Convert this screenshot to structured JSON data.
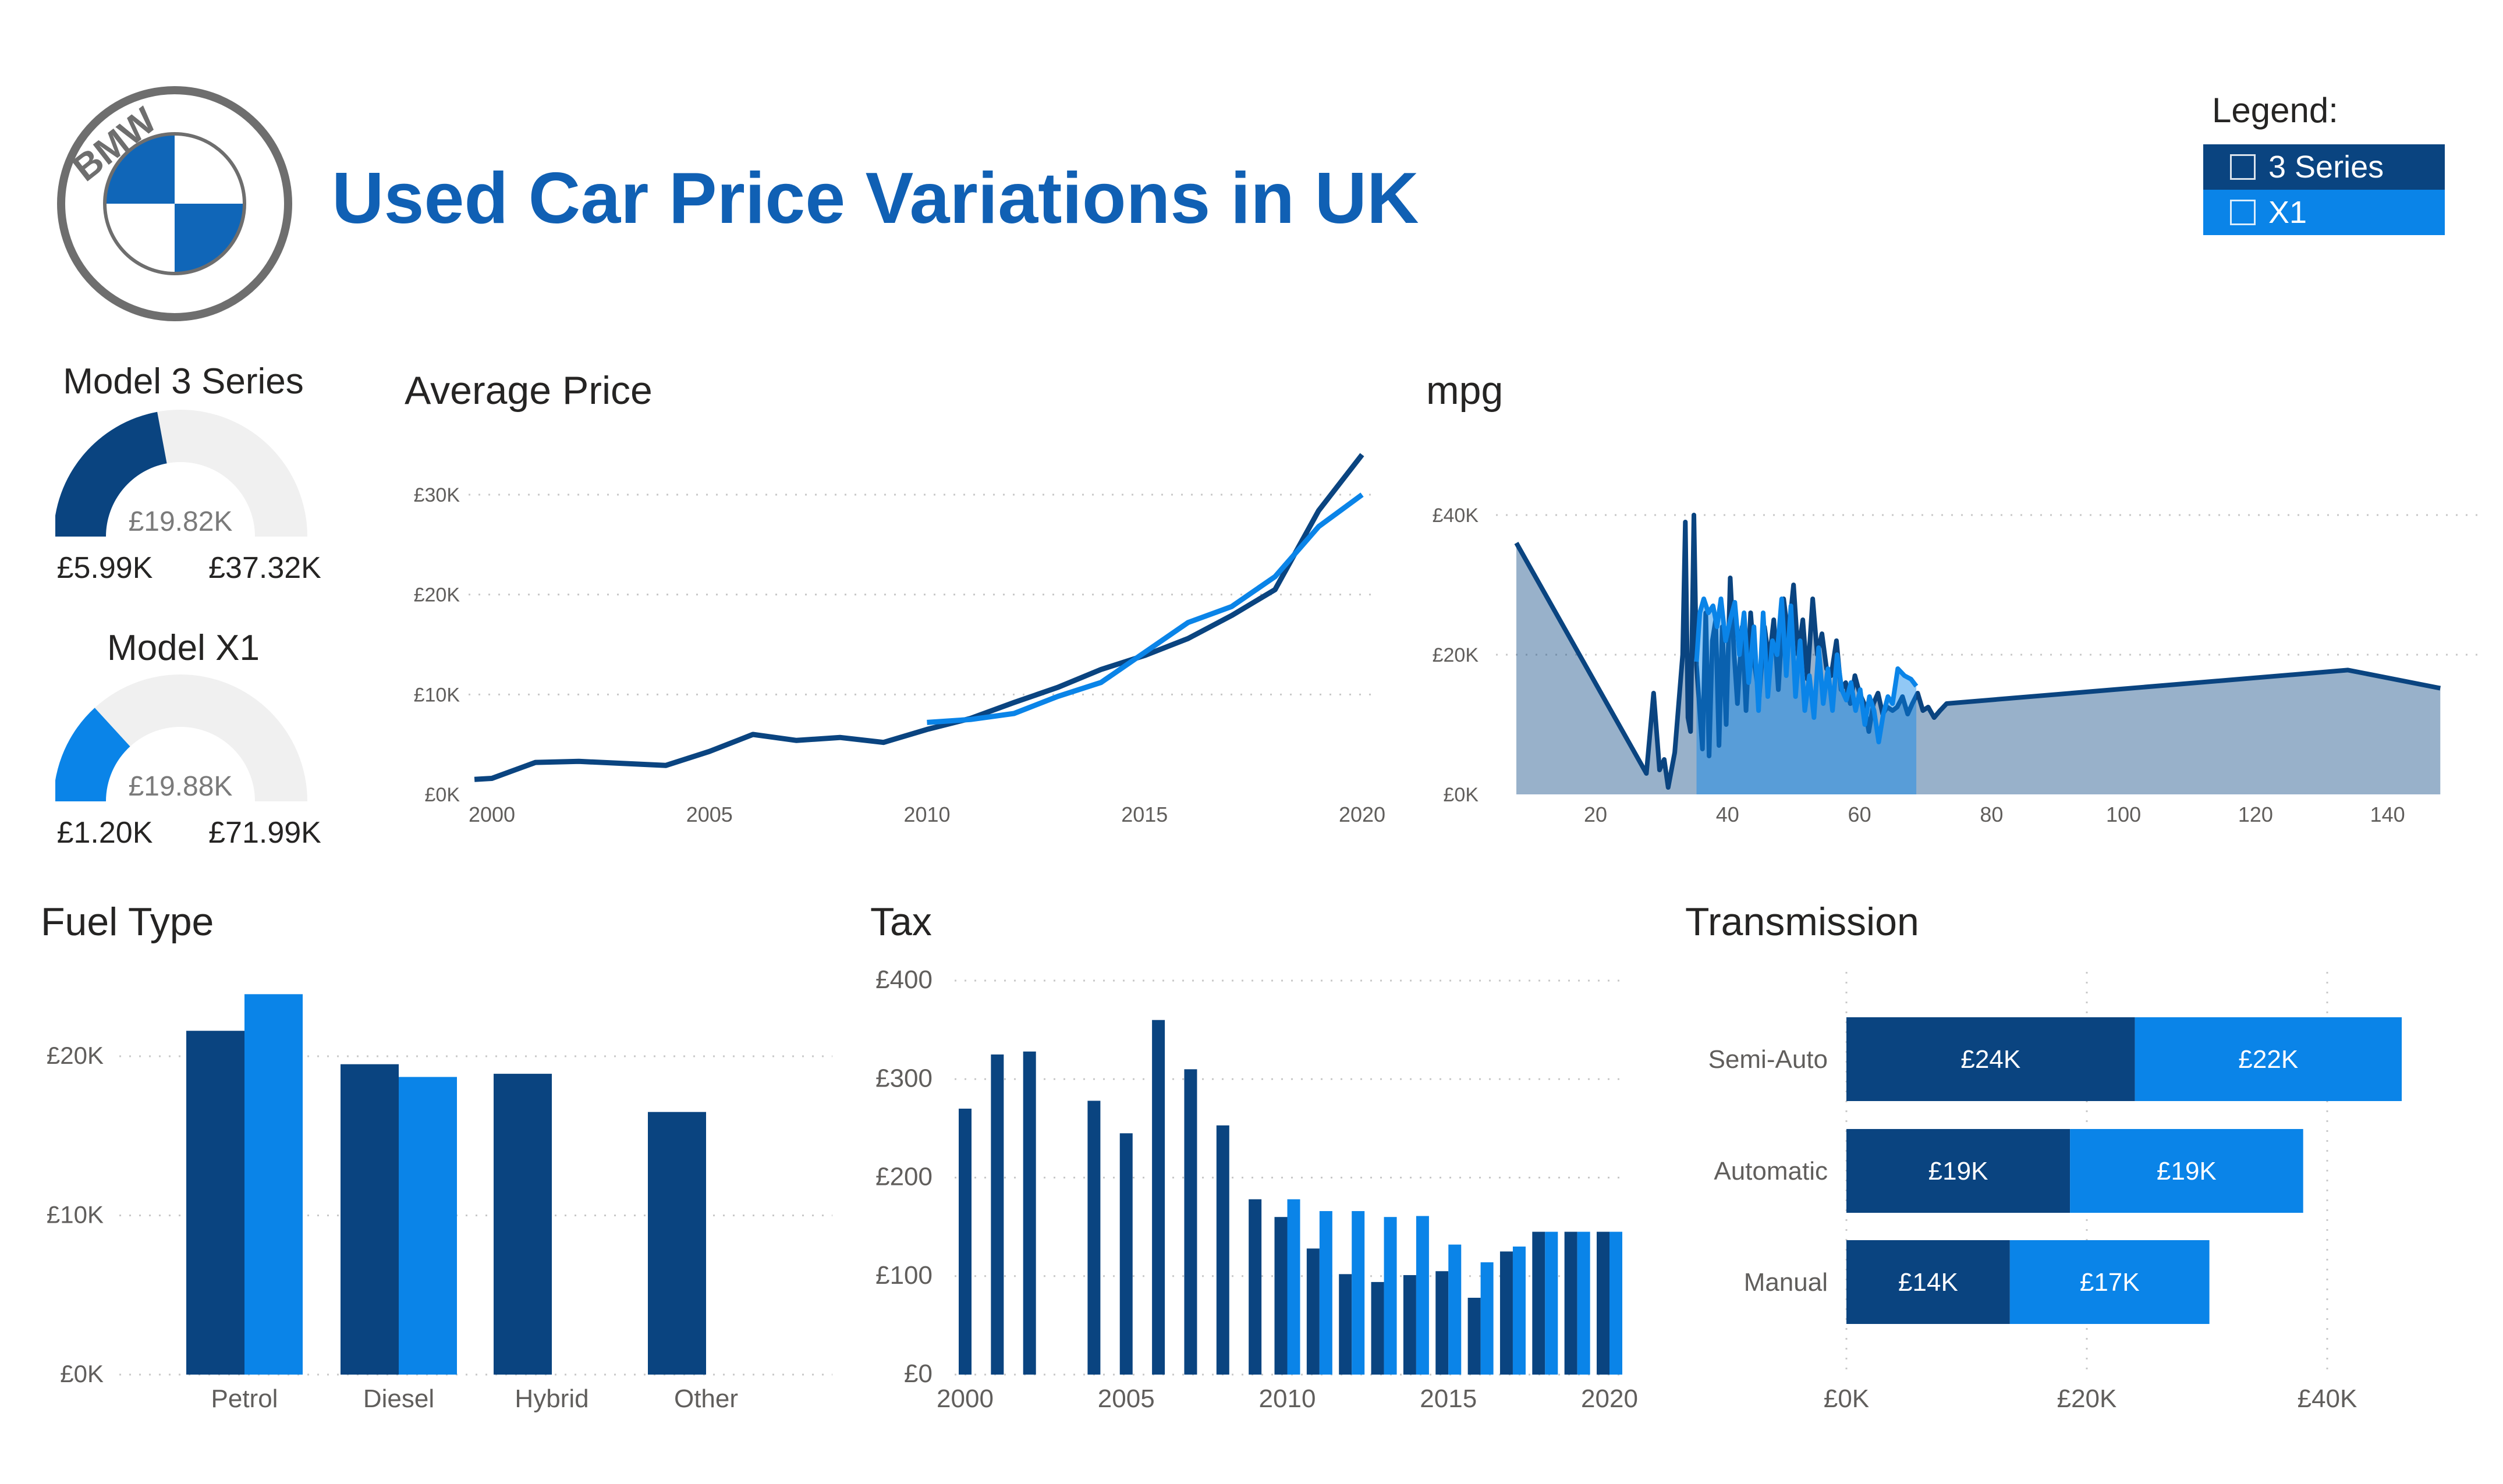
{
  "header": {
    "title": "Used Car Price Variations in UK",
    "logo_letters": "BMW"
  },
  "colors": {
    "series_3": "#0a4480",
    "series_x1": "#0a84e8",
    "brand_blue": "#1060b4",
    "gauge_track": "#f0f0f0"
  },
  "legend": {
    "title": "Legend:",
    "items": [
      {
        "label": "3 Series",
        "color": "#0a4480"
      },
      {
        "label": "X1",
        "color": "#0a84e8"
      }
    ]
  },
  "gauges": [
    {
      "title": "Model 3 Series",
      "value_label": "£19.82K",
      "min_label": "£5.99K",
      "max_label": "£37.32K",
      "value": 19.82,
      "min": 5.99,
      "max": 37.32,
      "color": "#0a4480"
    },
    {
      "title": "Model X1",
      "value_label": "£19.88K",
      "min_label": "£1.20K",
      "max_label": "£71.99K",
      "value": 19.88,
      "min": 1.2,
      "max": 71.99,
      "color": "#0a84e8"
    }
  ],
  "chart_data": [
    {
      "id": "average-price",
      "type": "line",
      "title": "Average Price",
      "xlim": [
        2000,
        2020
      ],
      "ylim": [
        0,
        30000
      ],
      "y_ticks": [
        {
          "v": 0,
          "label": "£0K"
        },
        {
          "v": 10000,
          "label": "£10K"
        },
        {
          "v": 20000,
          "label": "£20K"
        },
        {
          "v": 30000,
          "label": "£30K"
        }
      ],
      "x_ticks": [
        {
          "v": 2000,
          "label": "2000"
        },
        {
          "v": 2005,
          "label": "2005"
        },
        {
          "v": 2010,
          "label": "2010"
        },
        {
          "v": 2015,
          "label": "2015"
        },
        {
          "v": 2020,
          "label": "2020"
        }
      ],
      "grid": true,
      "series": [
        {
          "name": "3 Series",
          "color": "#0a4480",
          "points": [
            [
              1999.6,
              1500
            ],
            [
              2000,
              1600
            ],
            [
              2001,
              3200
            ],
            [
              2002,
              3300
            ],
            [
              2003,
              3100
            ],
            [
              2004,
              2900
            ],
            [
              2005,
              4300
            ],
            [
              2006,
              6000
            ],
            [
              2007,
              5400
            ],
            [
              2008,
              5700
            ],
            [
              2009,
              5200
            ],
            [
              2010,
              6500
            ],
            [
              2011,
              7600
            ],
            [
              2012,
              9200
            ],
            [
              2013,
              10700
            ],
            [
              2014,
              12500
            ],
            [
              2015,
              13900
            ],
            [
              2016,
              15600
            ],
            [
              2017,
              17900
            ],
            [
              2018,
              20500
            ],
            [
              2019,
              28400
            ],
            [
              2020,
              34000
            ]
          ]
        },
        {
          "name": "X1",
          "color": "#0a84e8",
          "points": [
            [
              2010,
              7200
            ],
            [
              2011,
              7500
            ],
            [
              2012,
              8100
            ],
            [
              2013,
              9800
            ],
            [
              2014,
              11200
            ],
            [
              2015,
              14200
            ],
            [
              2016,
              17200
            ],
            [
              2017,
              18800
            ],
            [
              2018,
              21800
            ],
            [
              2019,
              26800
            ],
            [
              2020,
              30000
            ]
          ]
        }
      ]
    },
    {
      "id": "mpg",
      "type": "area",
      "title": "mpg",
      "xlim": [
        8,
        150
      ],
      "ylim": [
        0,
        40000
      ],
      "y_ticks": [
        {
          "v": 0,
          "label": "£0K"
        },
        {
          "v": 20000,
          "label": "£20K"
        },
        {
          "v": 40000,
          "label": "£40K"
        }
      ],
      "x_ticks": [
        {
          "v": 20,
          "label": "20"
        },
        {
          "v": 40,
          "label": "40"
        },
        {
          "v": 60,
          "label": "60"
        },
        {
          "v": 80,
          "label": "80"
        },
        {
          "v": 100,
          "label": "100"
        },
        {
          "v": 120,
          "label": "120"
        },
        {
          "v": 140,
          "label": "140"
        }
      ],
      "grid": true,
      "series": [
        {
          "name": "3 Series",
          "color": "#0a4480",
          "points": [
            [
              8,
              36000
            ],
            [
              27.7,
              3000
            ],
            [
              28.8,
              14500
            ],
            [
              29.7,
              3500
            ],
            [
              30.4,
              5000
            ],
            [
              31,
              1000
            ],
            [
              32,
              6000
            ],
            [
              33.2,
              20000
            ],
            [
              33.6,
              39000
            ],
            [
              34,
              11000
            ],
            [
              34.4,
              9000
            ],
            [
              34.9,
              40000
            ],
            [
              35.3,
              18500
            ],
            [
              36.2,
              6500
            ],
            [
              36.7,
              26000
            ],
            [
              37.2,
              5500
            ],
            [
              37.7,
              22000
            ],
            [
              38.2,
              25000
            ],
            [
              38.7,
              7000
            ],
            [
              39.2,
              24000
            ],
            [
              39.8,
              10000
            ],
            [
              40.4,
              31000
            ],
            [
              41,
              20000
            ],
            [
              41.5,
              13000
            ],
            [
              42.2,
              24000
            ],
            [
              42.8,
              12000
            ],
            [
              43.5,
              26000
            ],
            [
              44.1,
              18500
            ],
            [
              44.8,
              14000
            ],
            [
              45.6,
              24000
            ],
            [
              46.3,
              19000
            ],
            [
              47,
              25000
            ],
            [
              47.7,
              15000
            ],
            [
              48.5,
              28000
            ],
            [
              49.2,
              22500
            ],
            [
              50,
              30000
            ],
            [
              50.7,
              20000
            ],
            [
              51.4,
              25000
            ],
            [
              52.1,
              16500
            ],
            [
              52.9,
              28000
            ],
            [
              53.6,
              20000
            ],
            [
              54.3,
              23000
            ],
            [
              55,
              18000
            ],
            [
              55.7,
              17000
            ],
            [
              56.5,
              22000
            ],
            [
              57.2,
              15000
            ],
            [
              57.9,
              16000
            ],
            [
              58.6,
              13000
            ],
            [
              59.3,
              17000
            ],
            [
              60,
              14500
            ],
            [
              60.7,
              13000
            ],
            [
              61.4,
              9000
            ],
            [
              62.1,
              13000
            ],
            [
              62.8,
              14500
            ],
            [
              63.5,
              11500
            ],
            [
              64.2,
              12500
            ],
            [
              65,
              12000
            ],
            [
              65.7,
              12500
            ],
            [
              66.5,
              14000
            ],
            [
              67.3,
              11500
            ],
            [
              68,
              13000
            ],
            [
              68.8,
              14500
            ],
            [
              69.6,
              12000
            ],
            [
              70.4,
              12500
            ],
            [
              71.3,
              11000
            ],
            [
              72.2,
              12000
            ],
            [
              73.2,
              13000
            ],
            [
              134,
              17800
            ],
            [
              148,
              15200
            ]
          ]
        },
        {
          "name": "X1",
          "color": "#0a84e8",
          "points": [
            [
              35.3,
              19000
            ],
            [
              35.8,
              26000
            ],
            [
              36.4,
              28000
            ],
            [
              37.1,
              26000
            ],
            [
              37.8,
              27000
            ],
            [
              38.4,
              24000
            ],
            [
              39,
              28000
            ],
            [
              39.7,
              22000
            ],
            [
              40.4,
              25000
            ],
            [
              41.1,
              27500
            ],
            [
              41.8,
              20000
            ],
            [
              42.5,
              26000
            ],
            [
              43.2,
              16000
            ],
            [
              44,
              24000
            ],
            [
              44.7,
              12000
            ],
            [
              45.4,
              26000
            ],
            [
              46.1,
              14000
            ],
            [
              46.8,
              22000
            ],
            [
              47.5,
              20000
            ],
            [
              48.2,
              28000
            ],
            [
              48.9,
              17000
            ],
            [
              49.6,
              27000
            ],
            [
              50.3,
              14000
            ],
            [
              51,
              22000
            ],
            [
              51.7,
              12000
            ],
            [
              52.4,
              17000
            ],
            [
              53.1,
              11000
            ],
            [
              53.8,
              21000
            ],
            [
              54.5,
              13000
            ],
            [
              55.2,
              18000
            ],
            [
              55.9,
              12000
            ],
            [
              56.6,
              20000
            ],
            [
              57.3,
              15000
            ],
            [
              58,
              13500
            ],
            [
              58.7,
              16000
            ],
            [
              59.4,
              12000
            ],
            [
              60.1,
              15000
            ],
            [
              60.8,
              10000
            ],
            [
              61.5,
              14000
            ],
            [
              62.2,
              12000
            ],
            [
              62.9,
              7500
            ],
            [
              63.6,
              11500
            ],
            [
              64.3,
              14000
            ],
            [
              65,
              13000
            ],
            [
              65.8,
              18000
            ],
            [
              66.8,
              17000
            ],
            [
              67.8,
              16500
            ],
            [
              68.6,
              15500
            ]
          ]
        }
      ]
    },
    {
      "id": "fuel-type",
      "type": "bar",
      "title": "Fuel Type",
      "categories": [
        "Petrol",
        "Diesel",
        "Hybrid",
        "Other"
      ],
      "ylim": [
        0,
        24000
      ],
      "y_ticks": [
        {
          "v": 0,
          "label": "£0K"
        },
        {
          "v": 10000,
          "label": "£10K"
        },
        {
          "v": 20000,
          "label": "£20K"
        }
      ],
      "grid": true,
      "series": [
        {
          "name": "3 Series",
          "color": "#0a4480",
          "values": [
            21600,
            19500,
            18900,
            16500
          ]
        },
        {
          "name": "X1",
          "color": "#0a84e8",
          "values": [
            23900,
            18700,
            null,
            null
          ]
        }
      ]
    },
    {
      "id": "tax",
      "type": "bar",
      "title": "Tax",
      "categories": [
        2000,
        2001,
        2002,
        2003,
        2004,
        2005,
        2006,
        2007,
        2008,
        2009,
        2010,
        2011,
        2012,
        2013,
        2014,
        2015,
        2016,
        2017,
        2018,
        2019,
        2020
      ],
      "xlim": [
        1999.2,
        2020.8
      ],
      "ylim": [
        0,
        400
      ],
      "y_ticks": [
        {
          "v": 0,
          "label": "£0"
        },
        {
          "v": 100,
          "label": "£100"
        },
        {
          "v": 200,
          "label": "£200"
        },
        {
          "v": 300,
          "label": "£300"
        },
        {
          "v": 400,
          "label": "£400"
        }
      ],
      "x_ticks": [
        {
          "v": 2000,
          "label": "2000"
        },
        {
          "v": 2005,
          "label": "2005"
        },
        {
          "v": 2010,
          "label": "2010"
        },
        {
          "v": 2015,
          "label": "2015"
        },
        {
          "v": 2020,
          "label": "2020"
        }
      ],
      "grid": true,
      "series": [
        {
          "name": "3 Series",
          "color": "#0a4480",
          "values": [
            270,
            325,
            328,
            null,
            278,
            245,
            360,
            310,
            253,
            178,
            160,
            128,
            102,
            94,
            101,
            105,
            78,
            125,
            145,
            145,
            145
          ]
        },
        {
          "name": "X1",
          "color": "#0a84e8",
          "values": [
            null,
            null,
            null,
            null,
            null,
            null,
            null,
            null,
            null,
            null,
            178,
            166,
            166,
            160,
            161,
            132,
            114,
            130,
            145,
            145,
            145
          ]
        }
      ]
    },
    {
      "id": "transmission",
      "type": "bar",
      "orientation": "horizontal",
      "stacked": true,
      "title": "Transmission",
      "categories": [
        "Semi-Auto",
        "Automatic",
        "Manual"
      ],
      "xlim": [
        0,
        50000
      ],
      "x_ticks": [
        {
          "v": 0,
          "label": "£0K"
        },
        {
          "v": 20000,
          "label": "£20K"
        },
        {
          "v": 40000,
          "label": "£40K"
        }
      ],
      "grid": true,
      "series": [
        {
          "name": "3 Series",
          "color": "#0a4480",
          "values": [
            24000,
            18600,
            13600
          ],
          "labels": [
            "£24K",
            "£19K",
            "£14K"
          ]
        },
        {
          "name": "X1",
          "color": "#0a84e8",
          "values": [
            22200,
            19400,
            16600
          ],
          "labels": [
            "£22K",
            "£19K",
            "£17K"
          ]
        }
      ]
    }
  ]
}
